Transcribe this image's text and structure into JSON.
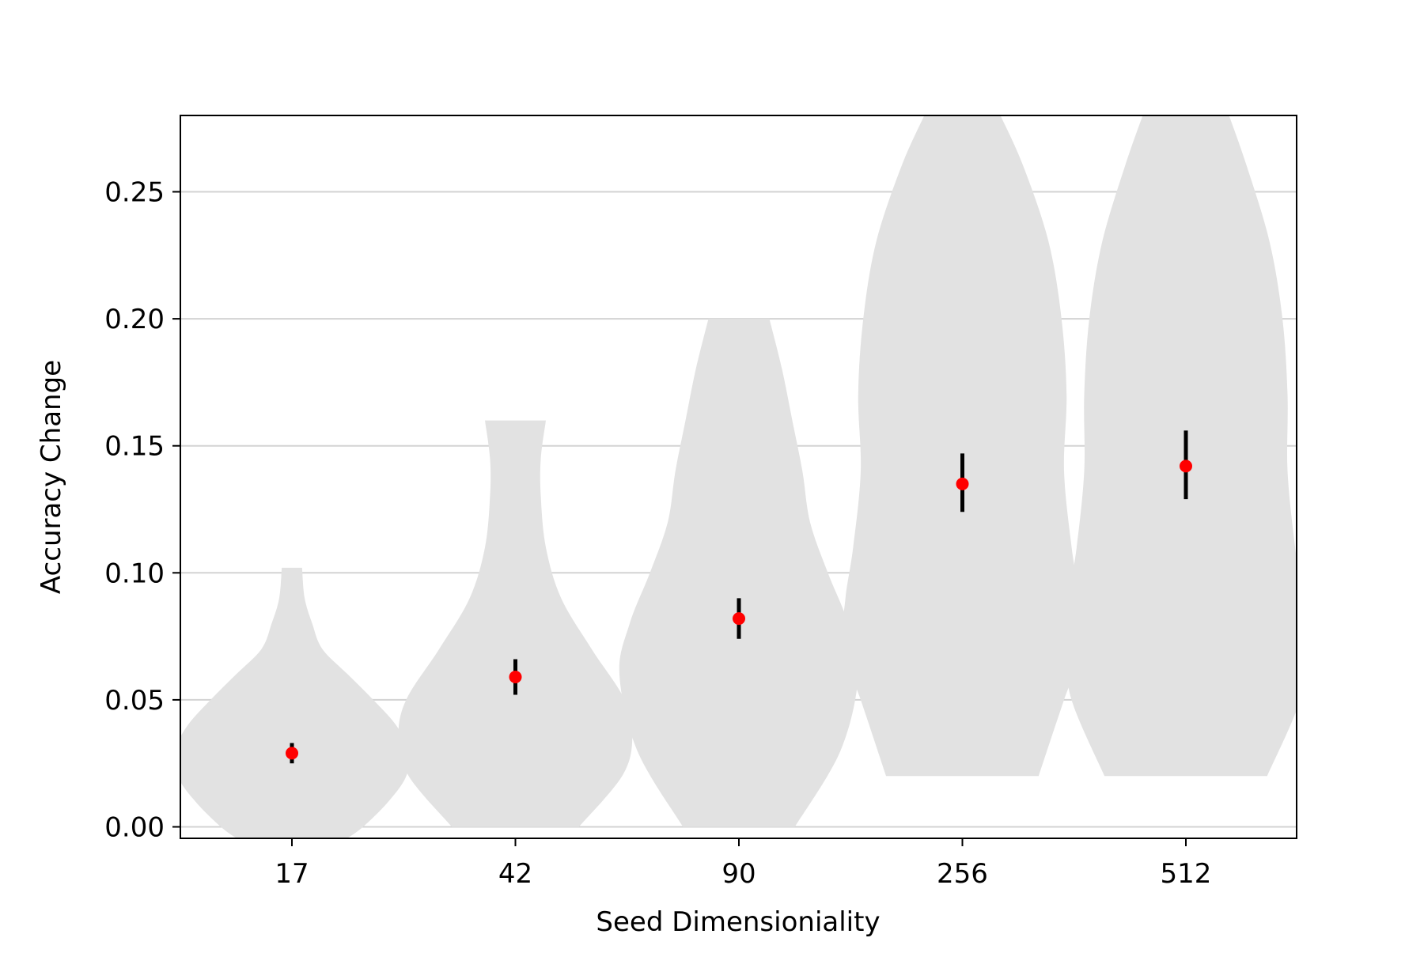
{
  "chart_data": {
    "type": "violin",
    "title": "",
    "xlabel": "Seed Dimensioniality",
    "ylabel": "Accuracy Change",
    "categories": [
      "17",
      "42",
      "90",
      "256",
      "512"
    ],
    "ylim": [
      -0.005,
      0.28
    ],
    "yticks": [
      "0.00",
      "0.05",
      "0.10",
      "0.15",
      "0.20",
      "0.25"
    ],
    "grid": "horizontal",
    "means": [
      0.029,
      0.059,
      0.082,
      0.135,
      0.142
    ],
    "error_low": [
      0.025,
      0.052,
      0.074,
      0.124,
      0.129
    ],
    "error_high": [
      0.033,
      0.066,
      0.09,
      0.147,
      0.156
    ],
    "distributions": [
      {
        "min": -0.005,
        "max": 0.102,
        "y": [
          -0.005,
          0.0,
          0.01,
          0.02,
          0.03,
          0.04,
          0.05,
          0.06,
          0.07,
          0.08,
          0.09,
          0.102
        ],
        "half_width": [
          0.021,
          0.028,
          0.038,
          0.045,
          0.046,
          0.041,
          0.032,
          0.022,
          0.012,
          0.008,
          0.005,
          0.004
        ]
      },
      {
        "min": 0.0,
        "max": 0.16,
        "y": [
          0.0,
          0.02,
          0.035,
          0.05,
          0.07,
          0.09,
          0.11,
          0.13,
          0.145,
          0.16
        ],
        "half_width": [
          0.025,
          0.042,
          0.046,
          0.043,
          0.03,
          0.018,
          0.012,
          0.01,
          0.01,
          0.012
        ]
      },
      {
        "min": 0.0,
        "max": 0.2,
        "y": [
          0.0,
          0.03,
          0.06,
          0.08,
          0.1,
          0.12,
          0.14,
          0.16,
          0.18,
          0.2
        ],
        "half_width": [
          0.022,
          0.04,
          0.047,
          0.043,
          0.035,
          0.028,
          0.025,
          0.021,
          0.017,
          0.012
        ]
      },
      {
        "min": 0.02,
        "max": 0.28,
        "y": [
          0.02,
          0.05,
          0.07,
          0.09,
          0.11,
          0.14,
          0.17,
          0.2,
          0.23,
          0.26,
          0.28
        ],
        "half_width": [
          0.03,
          0.04,
          0.047,
          0.046,
          0.043,
          0.04,
          0.041,
          0.039,
          0.034,
          0.024,
          0.015
        ]
      },
      {
        "min": 0.02,
        "max": 0.28,
        "y": [
          0.02,
          0.05,
          0.07,
          0.09,
          0.11,
          0.14,
          0.17,
          0.2,
          0.23,
          0.26,
          0.28
        ],
        "half_width": [
          0.032,
          0.045,
          0.047,
          0.046,
          0.043,
          0.04,
          0.04,
          0.038,
          0.033,
          0.024,
          0.017
        ]
      }
    ],
    "colors": {
      "violin": "#e2e2e2",
      "mean_marker": "#ff0000",
      "error_bar": "#000000",
      "grid": "#d3d3d3",
      "axes": "#000000"
    }
  }
}
